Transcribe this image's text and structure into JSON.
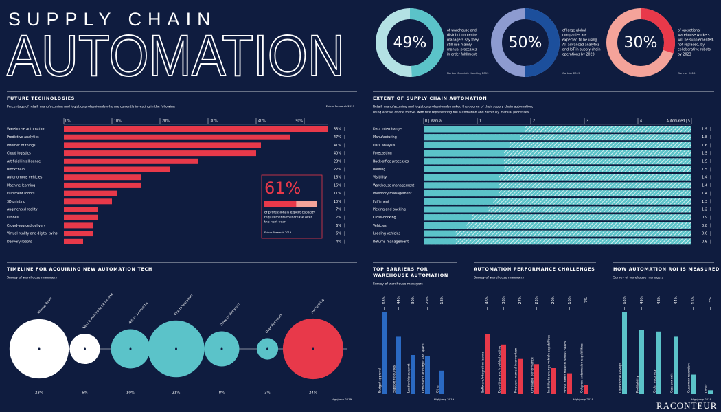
{
  "header": {
    "kicker": "SUPPLY CHAIN",
    "title": "AUTOMATION"
  },
  "footer": {
    "brand": "RACONTEUR"
  },
  "chart_data": [
    {
      "type": "donut",
      "values": [
        49
      ],
      "value_labels": [
        "49%"
      ],
      "color": "#5bc3c9",
      "track_color": "#b3e1e4",
      "text": [
        "of warehouse and",
        "distribution centre",
        "managers say they",
        "still use mainly",
        "manual processes",
        "in order fulfilment"
      ],
      "source": "Norton Materials Handling 2019"
    },
    {
      "type": "donut",
      "values": [
        50
      ],
      "value_labels": [
        "50%"
      ],
      "color": "#1c4f9c",
      "track_color": "#8d9bd0",
      "text": [
        "of large global",
        "companies are",
        "expected to be using",
        "AI, advanced analytics",
        "and IoT in supply chain",
        "operations by 2023"
      ],
      "source": "Gartner 2019"
    },
    {
      "type": "donut",
      "values": [
        30
      ],
      "value_labels": [
        "30%"
      ],
      "color": "#e8394a",
      "track_color": "#f4a39a",
      "text": [
        "of operational",
        "warehouse workers",
        "will be supplemented,",
        "not replaced, by",
        "collaborative robots",
        "by 2023"
      ],
      "source": "Gartner 2019"
    },
    {
      "type": "hbar",
      "title": "FUTURE TECHNOLOGIES",
      "subtitle": [
        "Percentage of retail, manufacturing and logistics professionals who are currently investing in the following"
      ],
      "source": "Epicor Research 2019",
      "color": "#e8394a",
      "categories": [
        "Warehouse automation",
        "Predictive analytics",
        "Internet of things",
        "Cloud logistics",
        "Artificial intelligence",
        "Blockchain",
        "Autonomous vehicles",
        "Machine learning",
        "Fulfilment robots",
        "3D printing",
        "Augmented reality",
        "Drones",
        "Crowd-sourced delivery",
        "Virtual reality and digital twins",
        "Delivery robots"
      ],
      "values": [
        55,
        47,
        41,
        40,
        28,
        22,
        16,
        16,
        11,
        10,
        7,
        7,
        6,
        6,
        4
      ],
      "value_labels": [
        "55%",
        "47%",
        "41%",
        "40%",
        "28%",
        "22%",
        "16%",
        "16%",
        "11%",
        "10%",
        "7%",
        "7%",
        "6%",
        "6%",
        "4%"
      ],
      "xlim": [
        0,
        55
      ],
      "xticks": [
        {
          "value": 0,
          "label": "0%"
        },
        {
          "value": 10,
          "label": "10%"
        },
        {
          "value": 20,
          "label": "20%"
        },
        {
          "value": 30,
          "label": "30%"
        },
        {
          "value": 40,
          "label": "40%"
        },
        {
          "value": 50,
          "label": "50%"
        }
      ],
      "callout": {
        "values": [
          61
        ],
        "value_labels": [
          "61%"
        ],
        "color": "#e8394a",
        "track_color": "#f4a39a",
        "text": [
          "of professionals expect capacity",
          "requirements to increase over",
          "the next year"
        ],
        "source": "Epicor Research 2019"
      }
    },
    {
      "type": "hbar",
      "title": "EXTENT OF SUPPLY CHAIN AUTOMATION",
      "subtitle": [
        "Retail, manufacturing and logistics professionals ranked the degree of their supply chain automation;",
        "using a scale of one to five, with five representing full automation and zero fully manual processes"
      ],
      "color": "#5bc3c9",
      "remainder_style": "hatched",
      "categories": [
        "Data interchange",
        "Manufacturing",
        "Data analysis",
        "Forecasting",
        "Back-office processes",
        "Routing",
        "Visibility",
        "Warehouse management",
        "Inventory management",
        "Fulfilment",
        "Picking and packing",
        "Cross-docking",
        "Vehicles",
        "Loading vehicles",
        "Returns management"
      ],
      "values": [
        1.9,
        1.8,
        1.6,
        1.5,
        1.5,
        1.5,
        1.4,
        1.4,
        1.4,
        1.3,
        1.2,
        0.9,
        0.8,
        0.6,
        0.6
      ],
      "xlim": [
        0,
        5
      ],
      "xticks": [
        {
          "value": 0,
          "label": "0 | Manual"
        },
        1,
        2,
        3,
        4,
        {
          "value": 5,
          "label": "Automated | 5"
        }
      ]
    },
    {
      "type": "bubble",
      "title": "TIMELINE FOR ACQUIRING NEW AUTOMATION TECH",
      "subtitle": [
        "Survey of warehouse managers"
      ],
      "source": "Highjump 2019",
      "categories": [
        "Already have",
        "Next 6 months to 18 months",
        "Within 12 months",
        "One to two years",
        "Three to five years",
        "Over five years",
        "Not looking"
      ],
      "values": [
        23,
        6,
        10,
        21,
        8,
        3,
        24
      ],
      "value_labels": [
        "23%",
        "6%",
        "10%",
        "21%",
        "8%",
        "3%",
        "24%"
      ],
      "colors": [
        "#ffffff",
        "#ffffff",
        "#5bc3c9",
        "#5bc3c9",
        "#5bc3c9",
        "#5bc3c9",
        "#e8394a"
      ]
    },
    {
      "type": "column",
      "title": [
        "TOP BARRIERS FOR",
        "WAREHOUSE AUTOMATION"
      ],
      "subtitle": [
        "Survey of warehouse managers"
      ],
      "source": "Highjump 2019",
      "color": "#2a69c2",
      "categories": [
        "Budget approval",
        "Support resources",
        "Leadership support",
        "Constraints of budget and space",
        "Other"
      ],
      "values": [
        63,
        44,
        30,
        29,
        18
      ],
      "value_labels": [
        "63%",
        "44%",
        "30%",
        "29%",
        "18%"
      ]
    },
    {
      "type": "column",
      "title": [
        "AUTOMATION PERFORMANCE CHALLENGES"
      ],
      "subtitle": [
        "Survey of warehouse managers"
      ],
      "source": "Highjump 2019",
      "color": "#e8394a",
      "categories": [
        "Software/integration issues",
        "Downtime and troubleshooting",
        "Frequent manual intervention",
        "Unreliable performance",
        "Inability to change vehicle capabilities",
        "Scope didn't meet business needs",
        "Outgrew automation capabilities"
      ],
      "values": [
        46,
        38,
        27,
        23,
        20,
        16,
        7
      ],
      "value_labels": [
        "46%",
        "38%",
        "27%",
        "23%",
        "20%",
        "16%",
        "7%"
      ]
    },
    {
      "type": "column",
      "title": [
        "HOW AUTOMATION ROI IS MEASURED"
      ],
      "subtitle": [
        "Survey of warehouse managers"
      ],
      "source": "Highjump 2019",
      "color": "#5bc3c9",
      "categories": [
        "Operational savings",
        "Profitability",
        "Order accuracy",
        "Cost per unit",
        "Customer retention",
        "Other"
      ],
      "values": [
        63,
        49,
        48,
        44,
        15,
        3
      ],
      "value_labels": [
        "63%",
        "49%",
        "48%",
        "44%",
        "15%",
        "3%"
      ]
    }
  ]
}
